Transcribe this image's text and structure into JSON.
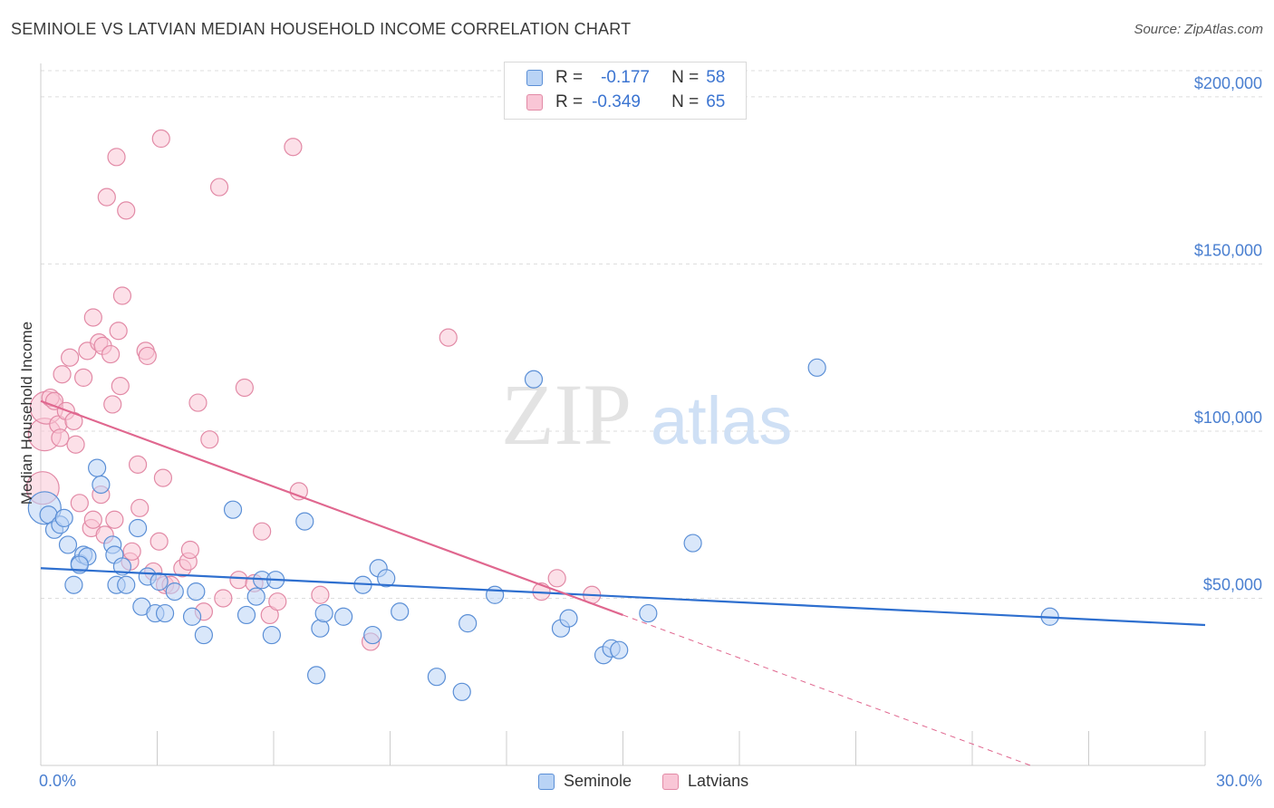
{
  "header": {
    "title": "SEMINOLE VS LATVIAN MEDIAN HOUSEHOLD INCOME CORRELATION CHART",
    "source": "Source: ZipAtlas.com"
  },
  "legend": {
    "rows": [
      {
        "r_label": "R =",
        "r_value": "-0.177",
        "n_label": "N =",
        "n_value": "58"
      },
      {
        "r_label": "R =",
        "r_value": "-0.349",
        "n_label": "N =",
        "n_value": "65"
      }
    ]
  },
  "watermark": {
    "zip": "ZIP",
    "atlas": "atlas"
  },
  "colors": {
    "seminole_fill": "#b9d3f5",
    "seminole_stroke": "#5b8fd6",
    "seminole_line": "#2e6fcf",
    "latvians_fill": "#f9c6d6",
    "latvians_stroke": "#e28aa6",
    "latvians_line": "#e0678f",
    "tick_color": "#4a7fd0",
    "grid": "#dddddd"
  },
  "chart_data": {
    "type": "scatter",
    "title": "SEMINOLE VS LATVIAN MEDIAN HOUSEHOLD INCOME CORRELATION CHART",
    "xlabel": "",
    "ylabel": "Median Household Income",
    "xlim": [
      0,
      30
    ],
    "ylim": [
      0,
      210000
    ],
    "x_tick_labels": [
      "0.0%",
      "30.0%"
    ],
    "y_ticks": [
      50000,
      100000,
      150000,
      200000
    ],
    "y_tick_labels": [
      "$50,000",
      "$100,000",
      "$150,000",
      "$200,000"
    ],
    "grid": true,
    "legend_position": "top-center",
    "series": [
      {
        "name": "Seminole",
        "points": [
          [
            0.1,
            77000
          ],
          [
            0.2,
            75000
          ],
          [
            0.35,
            70500
          ],
          [
            0.5,
            72000
          ],
          [
            0.6,
            74000
          ],
          [
            0.7,
            66000
          ],
          [
            0.85,
            54000
          ],
          [
            1.0,
            60500
          ],
          [
            1.1,
            63000
          ],
          [
            1.2,
            62500
          ],
          [
            1.45,
            89000
          ],
          [
            1.55,
            84000
          ],
          [
            1.85,
            66000
          ],
          [
            1.9,
            63000
          ],
          [
            1.95,
            54000
          ],
          [
            2.1,
            59500
          ],
          [
            2.2,
            54000
          ],
          [
            2.5,
            71000
          ],
          [
            2.6,
            47500
          ],
          [
            2.75,
            56500
          ],
          [
            2.95,
            45500
          ],
          [
            3.05,
            55000
          ],
          [
            3.2,
            45500
          ],
          [
            3.45,
            52000
          ],
          [
            3.9,
            44500
          ],
          [
            4.0,
            52000
          ],
          [
            4.2,
            39000
          ],
          [
            4.95,
            76500
          ],
          [
            5.3,
            45000
          ],
          [
            5.55,
            50500
          ],
          [
            5.7,
            55500
          ],
          [
            5.95,
            39000
          ],
          [
            6.05,
            55500
          ],
          [
            6.8,
            73000
          ],
          [
            7.1,
            27000
          ],
          [
            7.2,
            41000
          ],
          [
            7.3,
            45500
          ],
          [
            7.8,
            44500
          ],
          [
            8.3,
            54000
          ],
          [
            8.55,
            39000
          ],
          [
            8.7,
            59000
          ],
          [
            8.9,
            56000
          ],
          [
            9.25,
            46000
          ],
          [
            10.2,
            26500
          ],
          [
            10.85,
            22000
          ],
          [
            11.0,
            42500
          ],
          [
            11.7,
            51000
          ],
          [
            12.7,
            115500
          ],
          [
            13.4,
            41000
          ],
          [
            13.6,
            44000
          ],
          [
            14.5,
            33000
          ],
          [
            14.7,
            35000
          ],
          [
            14.9,
            34500
          ],
          [
            15.65,
            45500
          ],
          [
            16.8,
            66500
          ],
          [
            20.0,
            119000
          ],
          [
            26.0,
            44500
          ],
          [
            1.0,
            60000
          ]
        ]
      },
      {
        "name": "Latvians",
        "points": [
          [
            0.05,
            83000
          ],
          [
            0.1,
            99000
          ],
          [
            0.15,
            107000
          ],
          [
            0.25,
            110000
          ],
          [
            0.35,
            109000
          ],
          [
            0.45,
            102000
          ],
          [
            0.5,
            98000
          ],
          [
            0.55,
            117000
          ],
          [
            0.65,
            106000
          ],
          [
            0.75,
            122000
          ],
          [
            0.85,
            103000
          ],
          [
            0.9,
            96000
          ],
          [
            1.0,
            78500
          ],
          [
            1.1,
            116000
          ],
          [
            1.2,
            124000
          ],
          [
            1.3,
            71000
          ],
          [
            1.35,
            73500
          ],
          [
            1.35,
            134000
          ],
          [
            1.5,
            126500
          ],
          [
            1.6,
            125500
          ],
          [
            1.55,
            81000
          ],
          [
            1.65,
            69000
          ],
          [
            1.7,
            170000
          ],
          [
            1.8,
            123000
          ],
          [
            1.85,
            108000
          ],
          [
            1.9,
            73500
          ],
          [
            1.95,
            182000
          ],
          [
            2.0,
            130000
          ],
          [
            2.05,
            113500
          ],
          [
            2.1,
            140500
          ],
          [
            2.2,
            166000
          ],
          [
            2.3,
            61000
          ],
          [
            2.35,
            64000
          ],
          [
            2.5,
            90000
          ],
          [
            2.55,
            77000
          ],
          [
            2.7,
            124000
          ],
          [
            2.75,
            122500
          ],
          [
            2.9,
            58000
          ],
          [
            3.05,
            67000
          ],
          [
            3.1,
            187500
          ],
          [
            3.15,
            86000
          ],
          [
            3.2,
            54000
          ],
          [
            3.35,
            54000
          ],
          [
            3.65,
            59000
          ],
          [
            3.8,
            61000
          ],
          [
            3.85,
            64500
          ],
          [
            4.05,
            108500
          ],
          [
            4.2,
            46000
          ],
          [
            4.35,
            97500
          ],
          [
            4.6,
            173000
          ],
          [
            4.7,
            50000
          ],
          [
            5.1,
            55500
          ],
          [
            5.25,
            113000
          ],
          [
            5.5,
            54500
          ],
          [
            5.7,
            70000
          ],
          [
            5.9,
            45000
          ],
          [
            6.1,
            49000
          ],
          [
            6.5,
            185000
          ],
          [
            6.65,
            82000
          ],
          [
            7.2,
            51000
          ],
          [
            8.5,
            37000
          ],
          [
            10.5,
            128000
          ],
          [
            12.9,
            52000
          ],
          [
            13.3,
            56000
          ],
          [
            14.2,
            51000
          ]
        ]
      }
    ],
    "trend_lines": [
      {
        "series": "Seminole",
        "x": [
          0,
          30
        ],
        "y": [
          59000,
          42000
        ]
      },
      {
        "series": "Latvians",
        "x": [
          0,
          15
        ],
        "y": [
          109000,
          45000
        ],
        "dashed_extension": {
          "x": [
            15,
            25.5
          ],
          "y": [
            45000,
            0
          ]
        }
      }
    ]
  },
  "bottom_legend": [
    {
      "label": "Seminole"
    },
    {
      "label": "Latvians"
    }
  ]
}
